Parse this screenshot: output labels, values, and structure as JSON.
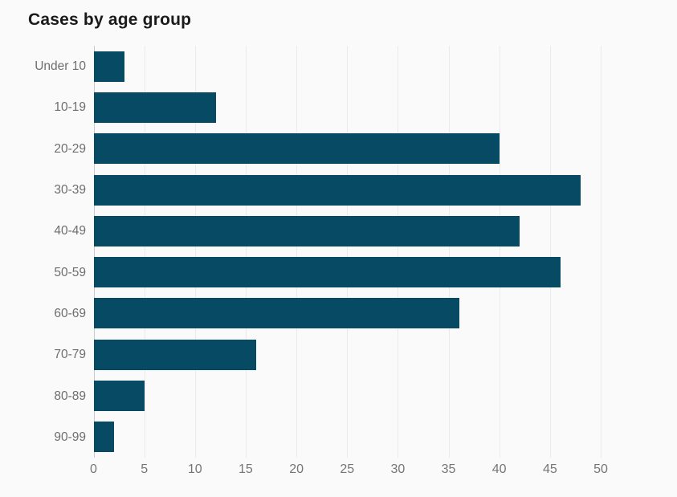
{
  "page": {
    "background_color": "#fafafa"
  },
  "header": {
    "title": "Cases by age group"
  },
  "chart_data": {
    "type": "bar",
    "orientation": "horizontal",
    "title": "Cases by age group",
    "categories": [
      "Under 10",
      "10-19",
      "20-29",
      "30-39",
      "40-49",
      "50-59",
      "60-69",
      "70-79",
      "80-89",
      "90-99"
    ],
    "values": [
      3,
      12,
      40,
      48,
      42,
      46,
      36,
      16,
      5,
      2
    ],
    "xlabel": "",
    "ylabel": "",
    "x_ticks": [
      0,
      5,
      10,
      15,
      20,
      25,
      30,
      35,
      40,
      45,
      50
    ],
    "xlim": [
      0,
      50
    ],
    "grid": "vertical-only",
    "legend": "none",
    "colors": {
      "bar": "#064a63",
      "gridline": "#ebebeb",
      "zero_line": "#c9c9c9",
      "tick_label": "#757575",
      "category_label": "#6e6e6e",
      "title": "#1a1a1a",
      "background": "#fafafa"
    }
  }
}
